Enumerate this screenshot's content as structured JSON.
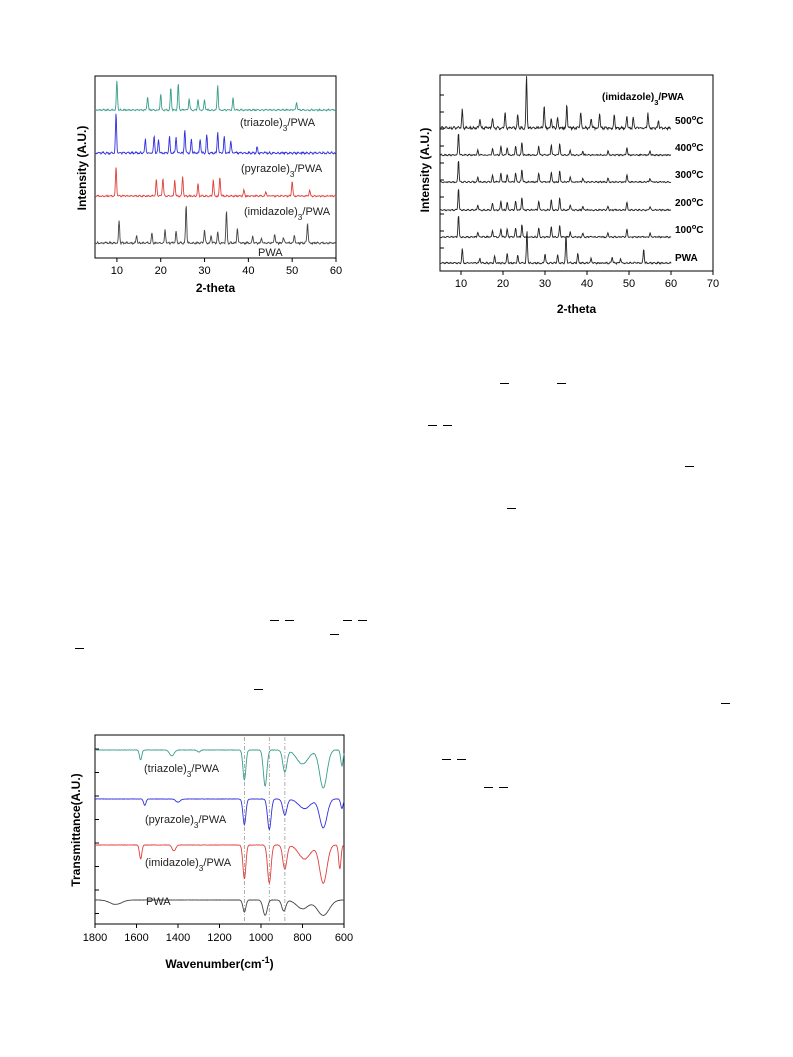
{
  "chart_data": [
    {
      "type": "line",
      "xlabel": "2-theta",
      "ylabel": "Intensity (A.U.)",
      "xlim": [
        5,
        60
      ],
      "xticks": [
        10,
        20,
        30,
        40,
        50,
        60
      ],
      "series": [
        {
          "name": "(triazole)3/PWA",
          "label_main": "(triazole)",
          "label_sub": "3",
          "label_tail": "/PWA",
          "color": "#3a9e8c",
          "peaks": [
            [
              10,
              1.0
            ],
            [
              17,
              0.45
            ],
            [
              20,
              0.55
            ],
            [
              22.3,
              0.75
            ],
            [
              24,
              0.9
            ],
            [
              26.5,
              0.4
            ],
            [
              28.5,
              0.35
            ],
            [
              30,
              0.35
            ],
            [
              33,
              0.85
            ],
            [
              36.5,
              0.4
            ],
            [
              51,
              0.25
            ]
          ]
        },
        {
          "name": "(pyrazole)3/PWA",
          "label_main": "(pyrazole)",
          "label_sub": "3",
          "label_tail": "/PWA",
          "color": "#3030dd",
          "peaks": [
            [
              9.8,
              1.0
            ],
            [
              16.5,
              0.35
            ],
            [
              18.5,
              0.45
            ],
            [
              19.5,
              0.35
            ],
            [
              22,
              0.4
            ],
            [
              23.5,
              0.4
            ],
            [
              25.5,
              0.6
            ],
            [
              27,
              0.35
            ],
            [
              29,
              0.35
            ],
            [
              30.5,
              0.45
            ],
            [
              33,
              0.55
            ],
            [
              34.5,
              0.4
            ],
            [
              36,
              0.3
            ],
            [
              42,
              0.15
            ]
          ]
        },
        {
          "name": "(imidazole)3/PWA",
          "label_main": "(imidazole)",
          "label_sub": "3",
          "label_tail": "/PWA",
          "color": "#e0403a",
          "peaks": [
            [
              9.8,
              1.0
            ],
            [
              19,
              0.55
            ],
            [
              20.5,
              0.6
            ],
            [
              23.2,
              0.55
            ],
            [
              25,
              0.65
            ],
            [
              28.5,
              0.4
            ],
            [
              32,
              0.55
            ],
            [
              33.5,
              0.65
            ],
            [
              39,
              0.2
            ],
            [
              44,
              0.15
            ],
            [
              50,
              0.5
            ],
            [
              54,
              0.2
            ]
          ]
        },
        {
          "name": "PWA",
          "label_main": "PWA",
          "label_sub": "",
          "label_tail": "",
          "color": "#444444",
          "peaks": [
            [
              10.5,
              0.6
            ],
            [
              14.5,
              0.2
            ],
            [
              18,
              0.25
            ],
            [
              21,
              0.35
            ],
            [
              23.5,
              0.3
            ],
            [
              25.8,
              1.0
            ],
            [
              30,
              0.35
            ],
            [
              31.5,
              0.2
            ],
            [
              33,
              0.3
            ],
            [
              35,
              0.85
            ],
            [
              37.5,
              0.4
            ],
            [
              41,
              0.2
            ],
            [
              43,
              0.15
            ],
            [
              46,
              0.25
            ],
            [
              48,
              0.15
            ],
            [
              50.5,
              0.2
            ],
            [
              53.5,
              0.55
            ]
          ]
        }
      ]
    },
    {
      "type": "line",
      "xlabel": "2-theta",
      "ylabel": "Intensity (A.U.)",
      "title_main": "(imidazole)",
      "title_sub": "3",
      "title_tail": "/PWA",
      "xlim": [
        5,
        70
      ],
      "xticks": [
        10,
        20,
        30,
        40,
        50,
        60,
        70
      ],
      "series": [
        {
          "name": "500oC",
          "temp": "500",
          "sup": "o",
          "unit": "C",
          "color": "#222222",
          "peaks": [
            [
              10.3,
              0.35
            ],
            [
              14.5,
              0.2
            ],
            [
              17.5,
              0.2
            ],
            [
              20.5,
              0.3
            ],
            [
              23.5,
              0.25
            ],
            [
              25.6,
              1.0
            ],
            [
              29.8,
              0.45
            ],
            [
              31.5,
              0.2
            ],
            [
              33,
              0.2
            ],
            [
              35.2,
              0.45
            ],
            [
              38.5,
              0.3
            ],
            [
              41,
              0.2
            ],
            [
              43,
              0.3
            ],
            [
              46.5,
              0.25
            ],
            [
              49.5,
              0.25
            ],
            [
              51,
              0.2
            ],
            [
              54.5,
              0.3
            ],
            [
              57,
              0.15
            ]
          ]
        },
        {
          "name": "400oC",
          "temp": "400",
          "sup": "o",
          "unit": "C",
          "color": "#222222",
          "peaks": [
            [
              9.4,
              0.85
            ],
            [
              14,
              0.2
            ],
            [
              17.5,
              0.25
            ],
            [
              19.5,
              0.35
            ],
            [
              21,
              0.3
            ],
            [
              23,
              0.35
            ],
            [
              24.5,
              0.5
            ],
            [
              28.5,
              0.35
            ],
            [
              31.5,
              0.4
            ],
            [
              33.5,
              0.45
            ],
            [
              36,
              0.2
            ],
            [
              39,
              0.15
            ],
            [
              45,
              0.15
            ],
            [
              49.5,
              0.3
            ],
            [
              55,
              0.15
            ]
          ]
        },
        {
          "name": "300oC",
          "temp": "300",
          "sup": "o",
          "unit": "C",
          "color": "#222222",
          "peaks": [
            [
              9.4,
              0.85
            ],
            [
              14,
              0.2
            ],
            [
              17.5,
              0.25
            ],
            [
              19.5,
              0.35
            ],
            [
              21,
              0.3
            ],
            [
              23,
              0.35
            ],
            [
              24.5,
              0.5
            ],
            [
              28.5,
              0.35
            ],
            [
              31.5,
              0.4
            ],
            [
              33.5,
              0.45
            ],
            [
              36,
              0.2
            ],
            [
              39,
              0.15
            ],
            [
              45,
              0.15
            ],
            [
              49.5,
              0.3
            ],
            [
              55,
              0.15
            ]
          ]
        },
        {
          "name": "200oC",
          "temp": "200",
          "sup": "o",
          "unit": "C",
          "color": "#222222",
          "peaks": [
            [
              9.4,
              0.85
            ],
            [
              14,
              0.2
            ],
            [
              17.5,
              0.25
            ],
            [
              19.5,
              0.35
            ],
            [
              21,
              0.3
            ],
            [
              23,
              0.35
            ],
            [
              24.5,
              0.5
            ],
            [
              28.5,
              0.35
            ],
            [
              31.5,
              0.4
            ],
            [
              33.5,
              0.45
            ],
            [
              36,
              0.2
            ],
            [
              39,
              0.15
            ],
            [
              45,
              0.15
            ],
            [
              49.5,
              0.3
            ],
            [
              55,
              0.15
            ]
          ]
        },
        {
          "name": "100oC",
          "temp": "100",
          "sup": "o",
          "unit": "C",
          "color": "#222222",
          "peaks": [
            [
              9.4,
              0.85
            ],
            [
              14,
              0.2
            ],
            [
              17.5,
              0.25
            ],
            [
              19.5,
              0.35
            ],
            [
              21,
              0.3
            ],
            [
              23,
              0.35
            ],
            [
              24.5,
              0.5
            ],
            [
              28.5,
              0.35
            ],
            [
              31.5,
              0.4
            ],
            [
              33.5,
              0.45
            ],
            [
              36,
              0.2
            ],
            [
              39,
              0.15
            ],
            [
              45,
              0.15
            ],
            [
              49.5,
              0.3
            ],
            [
              55,
              0.15
            ]
          ]
        },
        {
          "name": "PWA",
          "temp": "PWA",
          "sup": "",
          "unit": "",
          "color": "#222222",
          "peaks": [
            [
              10.3,
              0.45
            ],
            [
              14.5,
              0.15
            ],
            [
              18,
              0.2
            ],
            [
              21,
              0.3
            ],
            [
              23.5,
              0.25
            ],
            [
              25.7,
              1.0
            ],
            [
              30,
              0.3
            ],
            [
              33,
              0.25
            ],
            [
              35,
              0.85
            ],
            [
              37.8,
              0.3
            ],
            [
              41,
              0.15
            ],
            [
              46,
              0.2
            ],
            [
              48,
              0.15
            ],
            [
              53.5,
              0.45
            ]
          ]
        }
      ]
    },
    {
      "type": "line",
      "xlabel_main": "Wavenumber(cm",
      "xlabel_sup": "-1",
      "xlabel_tail": ")",
      "ylabel": "Transmittance(A.U.)",
      "xlim": [
        1800,
        600
      ],
      "xticks": [
        1800,
        1600,
        1400,
        1200,
        1000,
        800,
        600
      ],
      "reference_lines": [
        1080,
        960,
        885
      ],
      "series": [
        {
          "name": "(triazole)3/PWA",
          "label_main": "(triazole)",
          "label_sub": "3",
          "label_tail": "/PWA",
          "color": "#3a9e8c",
          "bands": [
            [
              1580,
              0.25,
              8
            ],
            [
              1430,
              0.15,
              15
            ],
            [
              1300,
              0.05,
              10
            ],
            [
              1080,
              0.75,
              10
            ],
            [
              980,
              0.9,
              12
            ],
            [
              885,
              0.55,
              14
            ],
            [
              800,
              0.35,
              40
            ],
            [
              700,
              0.95,
              25
            ],
            [
              610,
              0.4,
              8
            ]
          ]
        },
        {
          "name": "(pyrazole)3/PWA",
          "label_main": "(pyrazole)",
          "label_sub": "3",
          "label_tail": "/PWA",
          "color": "#3030dd",
          "bands": [
            [
              1560,
              0.2,
              8
            ],
            [
              1400,
              0.1,
              15
            ],
            [
              1080,
              0.8,
              10
            ],
            [
              960,
              0.95,
              12
            ],
            [
              885,
              0.5,
              14
            ],
            [
              790,
              0.3,
              40
            ],
            [
              700,
              0.9,
              25
            ],
            [
              610,
              0.3,
              8
            ]
          ]
        },
        {
          "name": "(imidazole)3/PWA",
          "label_main": "(imidazole)",
          "label_sub": "3",
          "label_tail": "/PWA",
          "color": "#e0403a",
          "bands": [
            [
              1580,
              0.35,
              8
            ],
            [
              1420,
              0.15,
              12
            ],
            [
              1080,
              0.85,
              10
            ],
            [
              960,
              0.95,
              12
            ],
            [
              885,
              0.6,
              14
            ],
            [
              790,
              0.35,
              40
            ],
            [
              700,
              0.95,
              25
            ],
            [
              620,
              0.6,
              8
            ]
          ]
        },
        {
          "name": "PWA",
          "label_main": "PWA",
          "label_sub": "",
          "label_tail": "",
          "color": "#444444",
          "bands": [
            [
              1700,
              0.2,
              40
            ],
            [
              1080,
              0.55,
              10
            ],
            [
              980,
              0.7,
              14
            ],
            [
              890,
              0.5,
              14
            ],
            [
              800,
              0.4,
              40
            ],
            [
              700,
              0.7,
              40
            ]
          ]
        }
      ]
    }
  ]
}
